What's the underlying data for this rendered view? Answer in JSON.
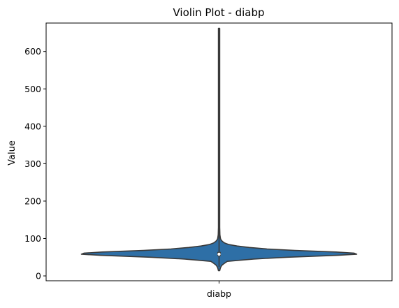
{
  "chart_data": {
    "type": "violin",
    "title": "Violin Plot - diabp",
    "xlabel": "",
    "ylabel": "Value",
    "categories": [
      "diabp"
    ],
    "yticks": [
      0,
      100,
      200,
      300,
      400,
      500,
      600
    ],
    "ylim": [
      -13,
      676
    ],
    "grid": false,
    "legend": "none",
    "series": [
      {
        "category": "diabp",
        "color": "#1f77b4",
        "min": 14,
        "q1": 53,
        "median": 58,
        "q3": 64,
        "max": 662,
        "whisker_low": 24,
        "whisker_high": 97
      }
    ],
    "density_profile": {
      "y": [
        14,
        22,
        28,
        34,
        39,
        45,
        50,
        55,
        58,
        61,
        64,
        68,
        72,
        76,
        80,
        84,
        88,
        92,
        96,
        100,
        110,
        130,
        200,
        400,
        662
      ],
      "relative_width": [
        0.0,
        0.01,
        0.02,
        0.04,
        0.06,
        0.25,
        0.5,
        0.86,
        1.0,
        0.98,
        0.85,
        0.55,
        0.35,
        0.22,
        0.13,
        0.07,
        0.04,
        0.025,
        0.015,
        0.01,
        0.006,
        0.004,
        0.003,
        0.002,
        0.0
      ]
    }
  },
  "colors": {
    "violin_fill": "#2e6fa6",
    "violin_stroke": "#3a3a3a",
    "axis": "#000000"
  }
}
